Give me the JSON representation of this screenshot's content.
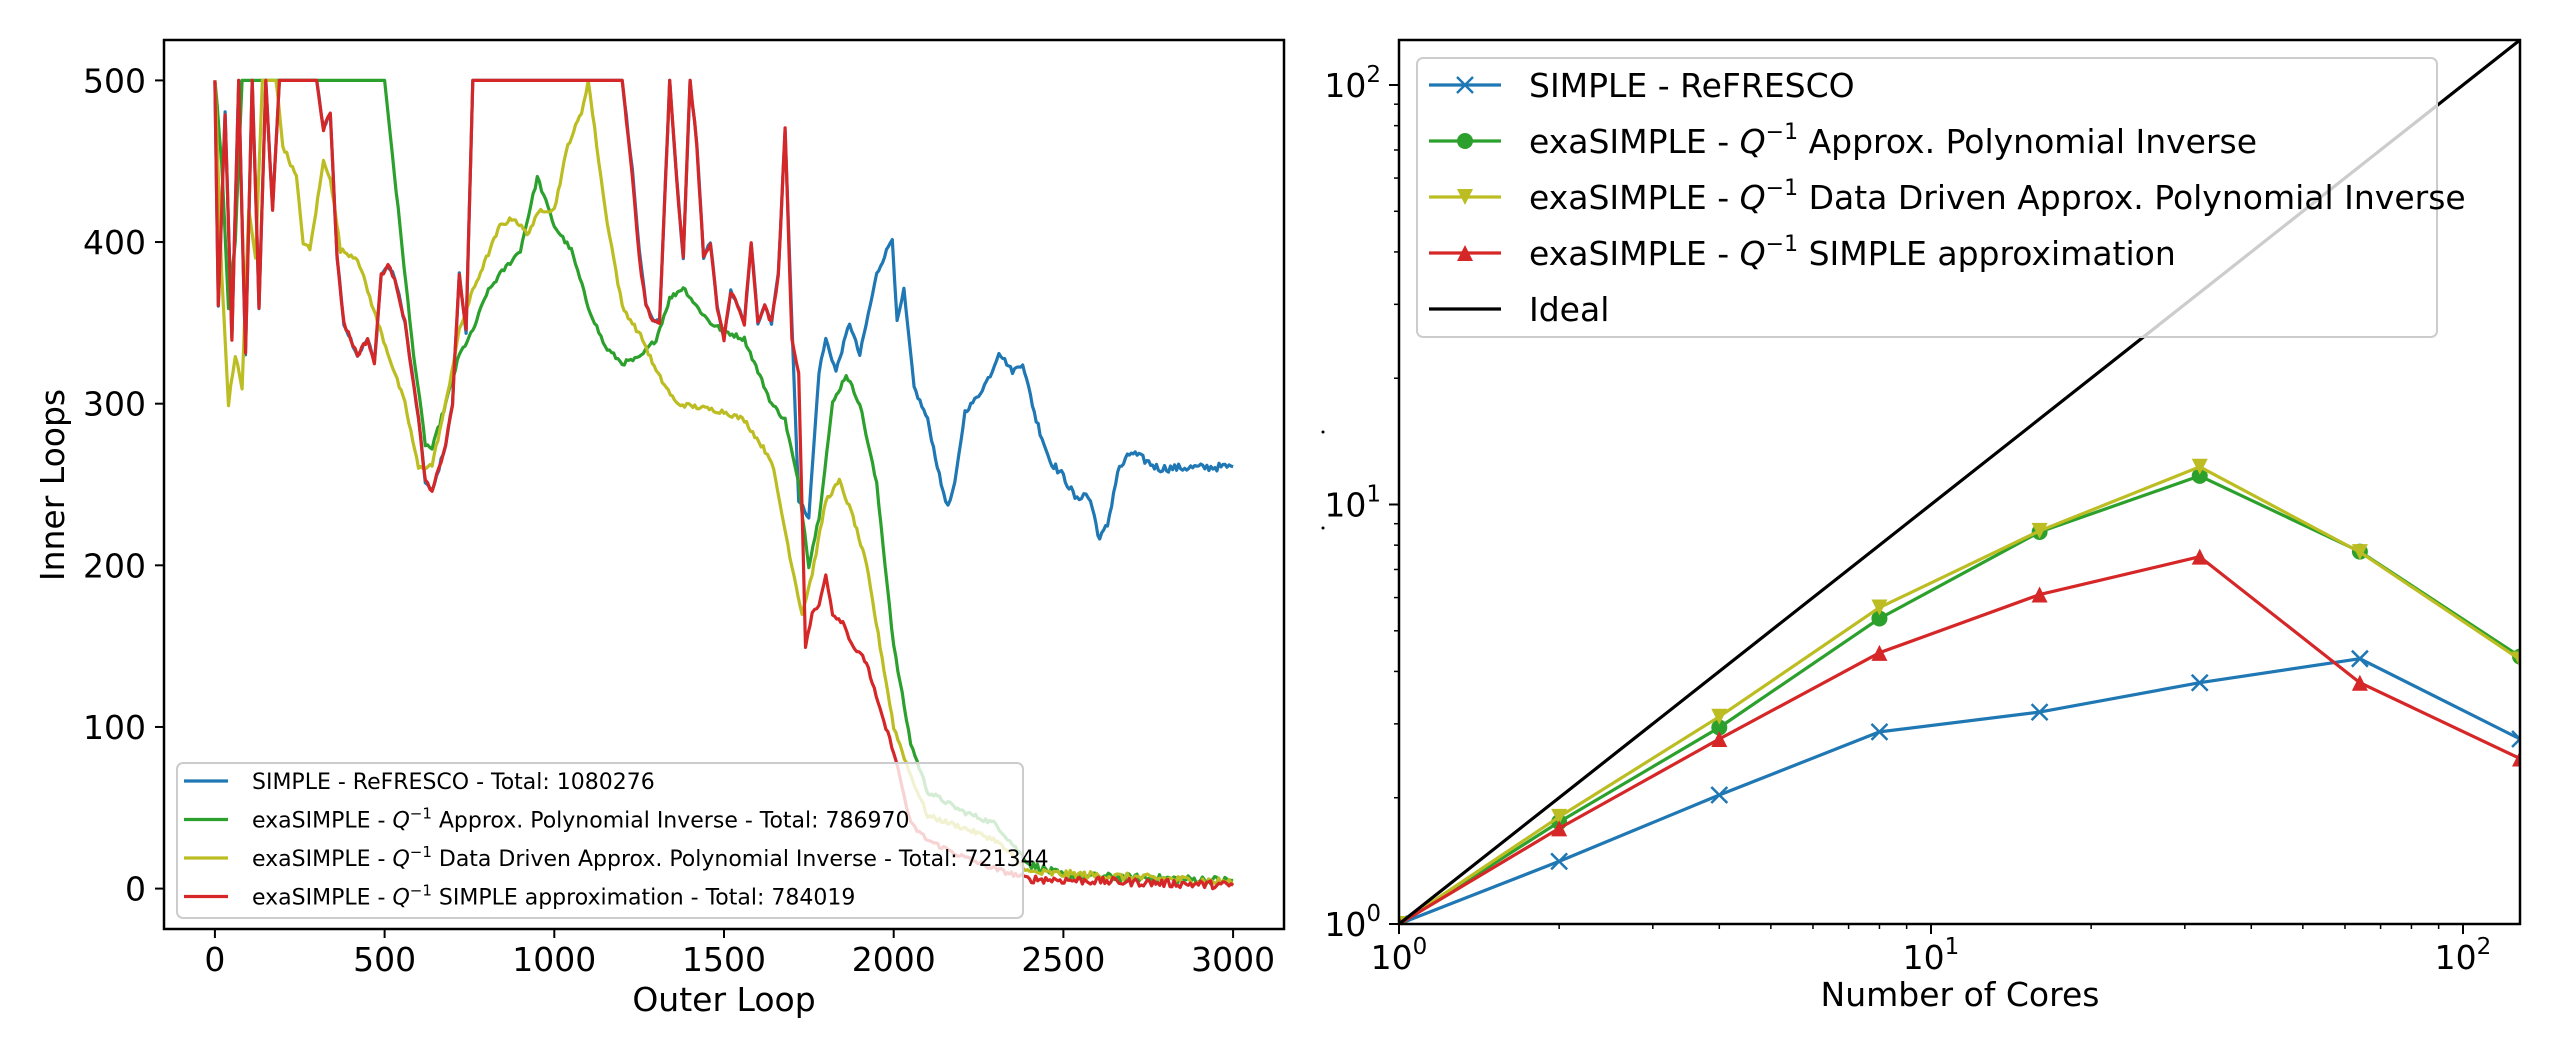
{
  "chart_data": [
    {
      "type": "line",
      "panel": "left",
      "title": "",
      "xlabel": "Outer Loop",
      "ylabel": "Inner Loops",
      "xlim": [
        -150,
        3150
      ],
      "ylim": [
        -25,
        525
      ],
      "xticks": [
        0,
        500,
        1000,
        1500,
        2000,
        2500,
        3000
      ],
      "xtick_labels": [
        "0",
        "500",
        "1000",
        "1500",
        "2000",
        "2500",
        "3000"
      ],
      "yticks": [
        0,
        100,
        200,
        300,
        400,
        500
      ],
      "ytick_labels": [
        "0",
        "100",
        "200",
        "300",
        "400",
        "500"
      ],
      "grid": false,
      "legend_placement": "lower-left",
      "series": [
        {
          "name": "SIMPLE - ReFRESCO - Total: 1080276",
          "label_prefix": "SIMPLE - ReFRESCO - Total: 1080276",
          "label_math": "",
          "label_suffix": "",
          "color": "#1f77b4",
          "noisy_until": 1720,
          "x": [
            0,
            10,
            30,
            50,
            70,
            90,
            110,
            130,
            150,
            170,
            190,
            300,
            320,
            340,
            360,
            380,
            400,
            420,
            450,
            470,
            490,
            510,
            530,
            560,
            580,
            600,
            620,
            640,
            660,
            680,
            700,
            720,
            740,
            760,
            1200,
            1230,
            1250,
            1270,
            1290,
            1310,
            1340,
            1360,
            1380,
            1400,
            1420,
            1440,
            1460,
            1480,
            1500,
            1520,
            1540,
            1560,
            1580,
            1600,
            1620,
            1640,
            1660,
            1680,
            1700,
            1720,
            1750,
            1780,
            1800,
            1830,
            1870,
            1900,
            1950,
            1996,
            2010,
            2030,
            2060,
            2100,
            2140,
            2160,
            2180,
            2210,
            2250,
            2290,
            2310,
            2350,
            2380,
            2420,
            2460,
            2500,
            2540,
            2560,
            2580,
            2607,
            2630,
            2660,
            2700,
            2740,
            2780,
            3000
          ],
          "y": [
            500,
            360,
            480,
            340,
            500,
            330,
            500,
            360,
            500,
            420,
            500,
            500,
            470,
            480,
            390,
            350,
            340,
            330,
            340,
            325,
            380,
            385,
            378,
            350,
            320,
            290,
            252,
            245,
            260,
            275,
            300,
            380,
            345,
            500,
            500,
            445,
            395,
            362,
            352,
            350,
            500,
            440,
            390,
            500,
            460,
            390,
            400,
            360,
            340,
            370,
            360,
            350,
            400,
            350,
            360,
            350,
            380,
            470,
            350,
            240,
            230,
            320,
            340,
            320,
            350,
            330,
            380,
            403,
            350,
            370,
            310,
            290,
            250,
            236,
            250,
            295,
            305,
            320,
            332,
            320,
            325,
            290,
            265,
            255,
            240,
            245,
            240,
            216,
            225,
            258,
            270,
            265,
            260,
            261
          ]
        },
        {
          "name": "exaSIMPLE - Q^{-1} Approx. Polynomial Inverse - Total: 786970",
          "label_prefix": "exaSIMPLE - ",
          "label_math": "Q",
          "label_suffix": " Approx. Polynomial Inverse - Total: 786970",
          "color": "#2ca02c",
          "noisy_until": 0,
          "x": [
            0,
            20,
            40,
            60,
            80,
            500,
            540,
            580,
            620,
            640,
            680,
            720,
            760,
            800,
            840,
            900,
            950,
            1000,
            1050,
            1100,
            1150,
            1200,
            1250,
            1300,
            1340,
            1380,
            1420,
            1460,
            1500,
            1560,
            1600,
            1640,
            1680,
            1720,
            1750,
            1780,
            1820,
            1860,
            1900,
            1950,
            2000,
            2050,
            2100,
            2200,
            2300,
            2400,
            2500,
            3000
          ],
          "y": [
            500,
            450,
            360,
            400,
            500,
            500,
            420,
            340,
            275,
            272,
            300,
            330,
            345,
            368,
            380,
            395,
            440,
            410,
            395,
            360,
            335,
            325,
            328,
            340,
            365,
            372,
            360,
            350,
            345,
            340,
            320,
            300,
            290,
            250,
            200,
            230,
            300,
            318,
            300,
            250,
            150,
            90,
            60,
            48,
            40,
            15,
            8,
            5
          ]
        },
        {
          "name": "exaSIMPLE - Q^{-1} Data Driven Approx. Polynomial Inverse - Total: 721344",
          "label_prefix": "exaSIMPLE - ",
          "label_math": "Q",
          "label_suffix": " Data Driven Approx. Polynomial Inverse - Total: 721344",
          "color": "#bcbd22",
          "noisy_until": 0,
          "x": [
            0,
            20,
            40,
            60,
            80,
            100,
            120,
            140,
            180,
            200,
            240,
            260,
            280,
            320,
            340,
            370,
            420,
            480,
            520,
            560,
            600,
            640,
            680,
            720,
            760,
            800,
            840,
            880,
            920,
            960,
            1000,
            1040,
            1080,
            1100,
            1150,
            1200,
            1260,
            1300,
            1360,
            1420,
            1500,
            1560,
            1640,
            1700,
            1730,
            1760,
            1800,
            1840,
            1880,
            1920,
            1960,
            2000,
            2050,
            2100,
            2200,
            2300,
            2400,
            3000
          ],
          "y": [
            500,
            380,
            300,
            330,
            310,
            420,
            390,
            500,
            500,
            460,
            440,
            400,
            395,
            450,
            440,
            395,
            390,
            350,
            325,
            300,
            260,
            262,
            300,
            345,
            370,
            390,
            410,
            415,
            405,
            420,
            420,
            460,
            480,
            500,
            420,
            360,
            340,
            320,
            300,
            298,
            295,
            290,
            265,
            200,
            170,
            195,
            240,
            252,
            230,
            200,
            150,
            100,
            70,
            45,
            38,
            30,
            10,
            4
          ]
        },
        {
          "name": "exaSIMPLE - Q^{-1} SIMPLE approximation - Total: 784019",
          "label_prefix": "exaSIMPLE - ",
          "label_math": "Q",
          "label_suffix": " SIMPLE approximation - Total: 784019",
          "color": "#d62728",
          "noisy_until": 1720,
          "x": [
            0,
            10,
            30,
            50,
            70,
            90,
            110,
            130,
            150,
            170,
            190,
            300,
            320,
            340,
            360,
            380,
            400,
            420,
            450,
            470,
            490,
            510,
            530,
            560,
            580,
            600,
            620,
            640,
            660,
            680,
            700,
            720,
            740,
            760,
            1200,
            1230,
            1250,
            1270,
            1290,
            1310,
            1340,
            1360,
            1380,
            1400,
            1420,
            1440,
            1460,
            1480,
            1500,
            1520,
            1540,
            1560,
            1580,
            1600,
            1620,
            1640,
            1660,
            1680,
            1700,
            1720,
            1740,
            1760,
            1780,
            1800,
            1820,
            1850,
            1880,
            1920,
            1960,
            2000,
            2050,
            2100,
            2200,
            2300,
            2400,
            3000
          ],
          "y": [
            500,
            360,
            480,
            340,
            500,
            330,
            500,
            360,
            500,
            420,
            500,
            500,
            470,
            480,
            390,
            350,
            340,
            330,
            340,
            325,
            380,
            385,
            378,
            350,
            320,
            290,
            252,
            245,
            260,
            275,
            300,
            380,
            345,
            500,
            500,
            440,
            390,
            360,
            352,
            350,
            500,
            440,
            390,
            500,
            460,
            390,
            400,
            360,
            340,
            370,
            360,
            350,
            400,
            350,
            360,
            350,
            380,
            470,
            340,
            320,
            150,
            170,
            175,
            195,
            170,
            165,
            150,
            140,
            110,
            85,
            40,
            30,
            20,
            12,
            6,
            2
          ]
        }
      ]
    },
    {
      "type": "line",
      "panel": "right",
      "title": "",
      "xlabel": "Number of Cores",
      "ylabel": "",
      "xscale": "log",
      "yscale": "log",
      "xlim": [
        1,
        128
      ],
      "ylim": [
        1,
        128
      ],
      "xticks": [
        1,
        10,
        100
      ],
      "xtick_labels": [
        [
          "10",
          "0"
        ],
        [
          "10",
          "1"
        ],
        [
          "10",
          "2"
        ]
      ],
      "yticks": [
        1,
        10,
        100
      ],
      "ytick_labels": [
        [
          "10",
          "0"
        ],
        [
          "10",
          "1"
        ],
        [
          "10",
          "2"
        ]
      ],
      "grid": false,
      "legend_placement": "upper-left",
      "x": [
        1,
        2,
        4,
        8,
        16,
        32,
        64,
        128
      ],
      "series": [
        {
          "name": "SIMPLE - ReFRESCO",
          "label_prefix": "SIMPLE - ReFRESCO",
          "label_math": "",
          "label_suffix": "",
          "color": "#1f77b4",
          "marker": "x",
          "values": [
            1.0,
            1.41,
            2.03,
            2.87,
            3.2,
            3.76,
            4.29,
            2.76
          ]
        },
        {
          "name": "exaSIMPLE - Q^{-1} Approx. Polynomial Inverse",
          "label_prefix": "exaSIMPLE - ",
          "label_math": "Q",
          "label_suffix": " Approx. Polynomial Inverse",
          "color": "#2ca02c",
          "marker": "o",
          "values": [
            1.0,
            1.75,
            2.94,
            5.35,
            8.6,
            11.7,
            7.72,
            4.34
          ]
        },
        {
          "name": "exaSIMPLE - Q^{-1} Data Driven Approx. Polynomial Inverse",
          "label_prefix": "exaSIMPLE - ",
          "label_math": "Q",
          "label_suffix": " Data Driven Approx. Polynomial Inverse",
          "color": "#bcbd22",
          "marker": "v",
          "values": [
            1.0,
            1.8,
            3.12,
            5.68,
            8.65,
            12.3,
            7.7,
            4.27
          ]
        },
        {
          "name": "exaSIMPLE - Q^{-1} SIMPLE approximation",
          "label_prefix": "exaSIMPLE - ",
          "label_math": "Q",
          "label_suffix": " SIMPLE approximation",
          "color": "#d62728",
          "marker": "^",
          "values": [
            1.0,
            1.69,
            2.76,
            4.43,
            6.1,
            7.51,
            3.76,
            2.48
          ]
        },
        {
          "name": "Ideal",
          "label_prefix": "Ideal",
          "label_math": "",
          "label_suffix": "",
          "color": "#000000",
          "marker": "none",
          "values": [
            1,
            2,
            4,
            8,
            16,
            32,
            64,
            128
          ]
        }
      ]
    }
  ],
  "math_superscript": "−1"
}
